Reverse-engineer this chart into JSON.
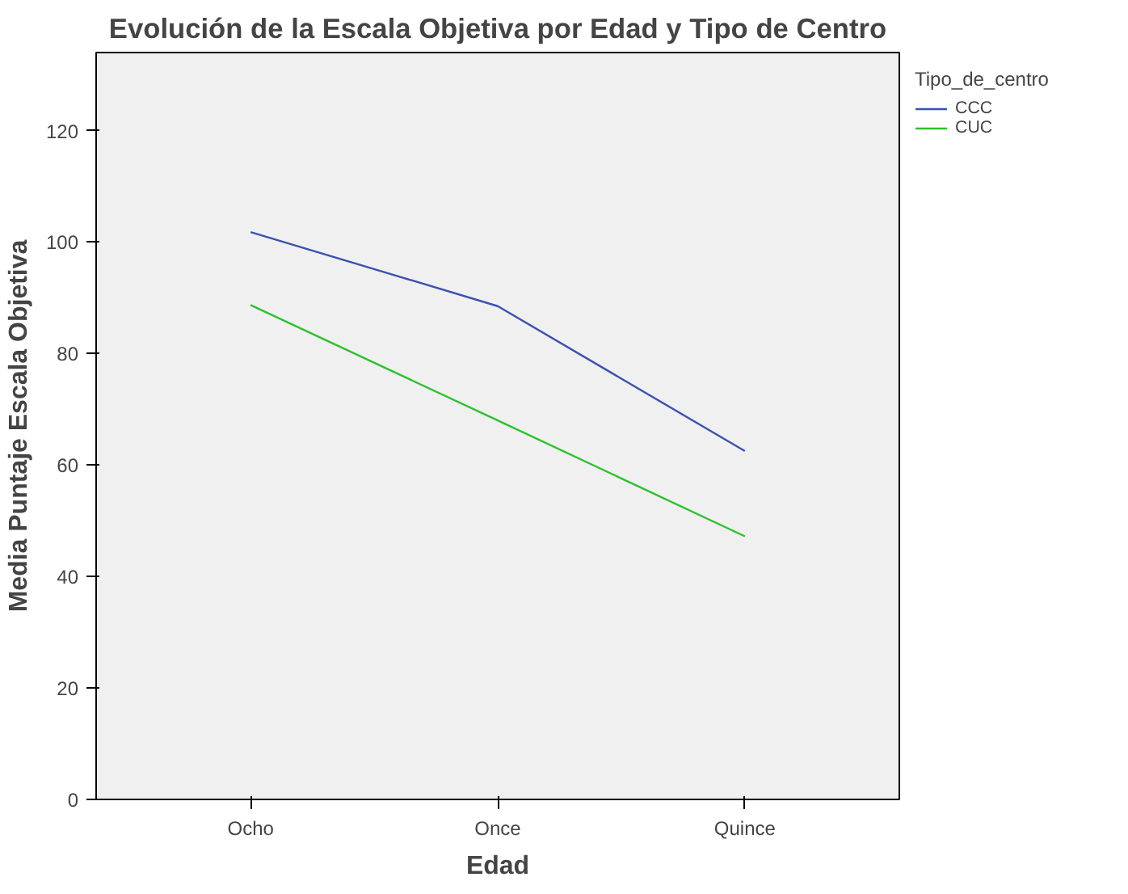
{
  "chart_data": {
    "type": "line",
    "title": "Evolución de la Escala Objetiva por Edad y Tipo de Centro",
    "xlabel": "Edad",
    "ylabel": "Media Puntaje Escala Objetiva",
    "legend_title": "Tipo_de_centro",
    "categories": [
      "Ocho",
      "Once",
      "Quince"
    ],
    "series": [
      {
        "name": "CCC",
        "color": "#3c50b0",
        "values": [
          101.8,
          88.5,
          62.5
        ]
      },
      {
        "name": "CUC",
        "color": "#2ec02e",
        "values": [
          88.7,
          68.0,
          47.2
        ]
      }
    ],
    "ylim": [
      0,
      134
    ],
    "yticks": [
      0,
      20,
      40,
      60,
      80,
      100,
      120
    ],
    "grid": false,
    "legend": "top right",
    "marker": "none",
    "line_style": "solid"
  }
}
